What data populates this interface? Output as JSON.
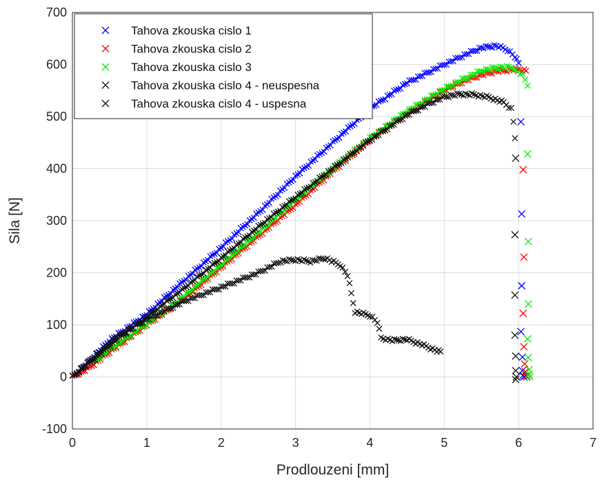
{
  "chart_data": {
    "type": "scatter",
    "title": "",
    "xlabel": "Prodlouzeni [mm]",
    "ylabel": "Sila [N]",
    "xlim": [
      0,
      7
    ],
    "ylim": [
      -100,
      700
    ],
    "xticks": [
      0,
      1,
      2,
      3,
      4,
      5,
      6,
      7
    ],
    "yticks": [
      -100,
      0,
      100,
      200,
      300,
      400,
      500,
      600,
      700
    ],
    "grid": true,
    "legend_position": "top-left",
    "marker": "x",
    "series": [
      {
        "name": "Tahova zkouska cislo 1",
        "color": "#0000ff",
        "curve": [
          [
            0.0,
            0
          ],
          [
            0.2,
            25
          ],
          [
            0.5,
            70
          ],
          [
            1.0,
            120
          ],
          [
            1.5,
            185
          ],
          [
            2.0,
            248
          ],
          [
            2.5,
            315
          ],
          [
            3.0,
            385
          ],
          [
            3.5,
            450
          ],
          [
            4.0,
            515
          ],
          [
            4.5,
            565
          ],
          [
            5.0,
            600
          ],
          [
            5.3,
            620
          ],
          [
            5.5,
            632
          ],
          [
            5.7,
            636
          ],
          [
            5.85,
            628
          ],
          [
            5.95,
            615
          ],
          [
            6.0,
            602
          ]
        ],
        "drop": [
          [
            6.03,
            490
          ],
          [
            6.04,
            313
          ],
          [
            6.04,
            175
          ],
          [
            6.03,
            87
          ],
          [
            6.05,
            38
          ],
          [
            6.05,
            12
          ],
          [
            6.06,
            3
          ],
          [
            6.07,
            0
          ]
        ]
      },
      {
        "name": "Tahova zkouska cislo 2",
        "color": "#ff0000",
        "curve": [
          [
            0.0,
            0
          ],
          [
            0.2,
            15
          ],
          [
            0.5,
            48
          ],
          [
            1.0,
            100
          ],
          [
            1.5,
            150
          ],
          [
            2.0,
            210
          ],
          [
            2.5,
            270
          ],
          [
            3.0,
            330
          ],
          [
            3.5,
            395
          ],
          [
            4.0,
            455
          ],
          [
            4.5,
            505
          ],
          [
            5.0,
            550
          ],
          [
            5.3,
            570
          ],
          [
            5.5,
            580
          ],
          [
            5.7,
            587
          ],
          [
            5.9,
            590
          ],
          [
            6.05,
            590
          ],
          [
            6.1,
            588
          ]
        ],
        "drop": [
          [
            6.06,
            398
          ],
          [
            6.07,
            230
          ],
          [
            6.06,
            122
          ],
          [
            6.07,
            58
          ],
          [
            6.08,
            25
          ],
          [
            6.09,
            10
          ],
          [
            6.1,
            2
          ],
          [
            6.11,
            0
          ]
        ]
      },
      {
        "name": "Tahova zkouska cislo 3",
        "color": "#00ee00",
        "curve": [
          [
            0.3,
            30
          ],
          [
            0.5,
            52
          ],
          [
            1.0,
            102
          ],
          [
            1.5,
            155
          ],
          [
            2.0,
            215
          ],
          [
            2.5,
            277
          ],
          [
            3.0,
            340
          ],
          [
            3.5,
            400
          ],
          [
            4.0,
            458
          ],
          [
            4.5,
            510
          ],
          [
            5.0,
            553
          ],
          [
            5.3,
            575
          ],
          [
            5.5,
            588
          ],
          [
            5.7,
            594
          ],
          [
            5.9,
            595
          ],
          [
            6.05,
            580
          ],
          [
            6.12,
            560
          ]
        ],
        "drop": [
          [
            6.12,
            428
          ],
          [
            6.13,
            260
          ],
          [
            6.13,
            140
          ],
          [
            6.12,
            73
          ],
          [
            6.13,
            37
          ],
          [
            6.14,
            14
          ],
          [
            6.14,
            5
          ],
          [
            6.15,
            0
          ]
        ]
      },
      {
        "name": "Tahova zkouska cislo 4 - neuspesna",
        "color": "#111111",
        "curve": [
          [
            0.0,
            0
          ],
          [
            0.3,
            40
          ],
          [
            0.6,
            78
          ],
          [
            1.0,
            110
          ],
          [
            1.5,
            145
          ],
          [
            2.0,
            172
          ],
          [
            2.5,
            200
          ],
          [
            2.8,
            222
          ],
          [
            3.0,
            225
          ],
          [
            3.2,
            222
          ],
          [
            3.4,
            228
          ],
          [
            3.6,
            215
          ],
          [
            3.7,
            195
          ],
          [
            3.75,
            160
          ],
          [
            3.8,
            125
          ],
          [
            4.0,
            118
          ],
          [
            4.1,
            105
          ],
          [
            4.15,
            75
          ],
          [
            4.3,
            70
          ],
          [
            4.5,
            72
          ],
          [
            4.7,
            62
          ],
          [
            4.9,
            50
          ],
          [
            4.95,
            48
          ]
        ],
        "drop": []
      },
      {
        "name": "Tahova zkouska cislo 4 - uspesna",
        "color": "#111111",
        "curve": [
          [
            0.0,
            0
          ],
          [
            0.3,
            35
          ],
          [
            0.6,
            72
          ],
          [
            1.0,
            115
          ],
          [
            1.5,
            170
          ],
          [
            2.0,
            228
          ],
          [
            2.5,
            288
          ],
          [
            3.0,
            345
          ],
          [
            3.5,
            400
          ],
          [
            4.0,
            455
          ],
          [
            4.5,
            503
          ],
          [
            4.8,
            525
          ],
          [
            5.0,
            538
          ],
          [
            5.2,
            543
          ],
          [
            5.4,
            542
          ],
          [
            5.6,
            537
          ],
          [
            5.8,
            527
          ],
          [
            5.9,
            515
          ],
          [
            5.93,
            490
          ],
          [
            5.95,
            460
          ]
        ],
        "drop": [
          [
            5.96,
            420
          ],
          [
            5.95,
            273
          ],
          [
            5.95,
            157
          ],
          [
            5.95,
            80
          ],
          [
            5.96,
            40
          ],
          [
            5.96,
            12
          ],
          [
            5.96,
            -5
          ],
          [
            5.97,
            0
          ]
        ]
      }
    ]
  }
}
